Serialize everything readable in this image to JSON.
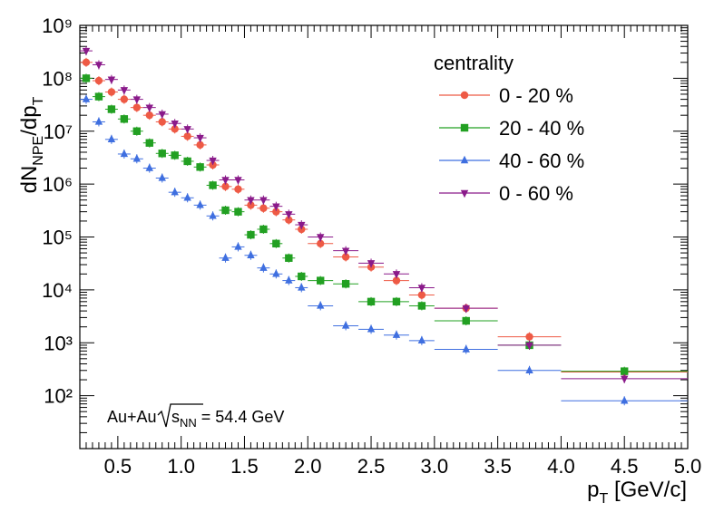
{
  "chart_data": {
    "type": "scatter",
    "x_axis": {
      "label": "p_T [GeV/c]",
      "range": [
        0.2,
        5.0
      ],
      "ticks": [
        "0.5",
        "1.0",
        "1.5",
        "2.0",
        "2.5",
        "3.0",
        "3.5",
        "4.0",
        "4.5",
        "5.0"
      ]
    },
    "y_axis": {
      "label": "dN_NPE/dp_T",
      "range": [
        10,
        1000000000
      ],
      "scale": "log",
      "ticks": [
        "10²",
        "10³",
        "10⁴",
        "10⁵",
        "10⁶",
        "10⁷",
        "10⁸",
        "10⁹"
      ]
    },
    "legend": {
      "title": "centrality",
      "position": "top-right"
    },
    "annotation": "Au+Au √s_NN = 54.4 GeV",
    "series": [
      {
        "name": "0  - 20 %",
        "color": "#ee5a45",
        "marker": "circle",
        "x": [
          0.25,
          0.35,
          0.45,
          0.55,
          0.65,
          0.75,
          0.85,
          0.95,
          1.05,
          1.15,
          1.25,
          1.35,
          1.45,
          1.55,
          1.65,
          1.75,
          1.85,
          1.95,
          2.1,
          2.3,
          2.5,
          2.7,
          2.9,
          3.25,
          3.75,
          4.5
        ],
        "xerr": [
          0.05,
          0.05,
          0.05,
          0.05,
          0.05,
          0.05,
          0.05,
          0.05,
          0.05,
          0.05,
          0.05,
          0.05,
          0.05,
          0.05,
          0.05,
          0.05,
          0.05,
          0.05,
          0.1,
          0.1,
          0.1,
          0.1,
          0.1,
          0.25,
          0.25,
          0.5
        ],
        "y": [
          200000000,
          90000000,
          55000000,
          40000000,
          28000000,
          20000000,
          15000000,
          11000000,
          8000000,
          5500000,
          2300000,
          900000,
          800000,
          400000,
          350000,
          300000,
          210000,
          140000,
          75000,
          42000,
          27000,
          15000,
          8000,
          4500,
          1300,
          280
        ]
      },
      {
        "name": "20  - 40 %",
        "color": "#22a022",
        "marker": "square",
        "x": [
          0.25,
          0.35,
          0.45,
          0.55,
          0.65,
          0.75,
          0.85,
          0.95,
          1.05,
          1.15,
          1.25,
          1.35,
          1.45,
          1.55,
          1.65,
          1.75,
          1.85,
          1.95,
          2.1,
          2.3,
          2.5,
          2.7,
          2.9,
          3.25,
          3.75,
          4.5
        ],
        "xerr": [
          0.05,
          0.05,
          0.05,
          0.05,
          0.05,
          0.05,
          0.05,
          0.05,
          0.05,
          0.05,
          0.05,
          0.05,
          0.05,
          0.05,
          0.05,
          0.05,
          0.05,
          0.05,
          0.1,
          0.1,
          0.1,
          0.1,
          0.1,
          0.25,
          0.25,
          0.5
        ],
        "y": [
          100000000,
          45000000,
          26000000,
          17000000,
          10000000,
          6000000,
          3800000,
          3500000,
          2700000,
          2100000,
          950000,
          320000,
          300000,
          110000,
          140000,
          75000,
          40000,
          18000,
          15000,
          13000,
          6000,
          6000,
          5000,
          2600,
          900,
          290
        ]
      },
      {
        "name": "40  - 60 %",
        "color": "#3f6fe0",
        "marker": "triangle-up",
        "x": [
          0.25,
          0.35,
          0.45,
          0.55,
          0.65,
          0.75,
          0.85,
          0.95,
          1.05,
          1.15,
          1.25,
          1.35,
          1.45,
          1.55,
          1.65,
          1.75,
          1.85,
          1.95,
          2.1,
          2.3,
          2.5,
          2.7,
          2.9,
          3.25,
          3.75,
          4.5
        ],
        "xerr": [
          0.05,
          0.05,
          0.05,
          0.05,
          0.05,
          0.05,
          0.05,
          0.05,
          0.05,
          0.05,
          0.05,
          0.05,
          0.05,
          0.05,
          0.05,
          0.05,
          0.05,
          0.05,
          0.1,
          0.1,
          0.1,
          0.1,
          0.1,
          0.25,
          0.25,
          0.5
        ],
        "y": [
          40000000,
          15000000,
          7000000,
          3700000,
          3000000,
          2000000,
          1300000,
          700000,
          550000,
          400000,
          250000,
          40000,
          65000,
          45000,
          26000,
          20000,
          15000,
          11000,
          5000,
          2100,
          1800,
          1400,
          1100,
          750,
          300,
          80
        ]
      },
      {
        "name": "0 - 60 %",
        "color": "#8a1a8a",
        "marker": "triangle-down",
        "x": [
          0.25,
          0.35,
          0.45,
          0.55,
          0.65,
          0.75,
          0.85,
          0.95,
          1.05,
          1.15,
          1.25,
          1.35,
          1.45,
          1.55,
          1.65,
          1.75,
          1.85,
          1.95,
          2.1,
          2.3,
          2.5,
          2.7,
          2.9,
          3.25,
          3.75,
          4.5
        ],
        "xerr": [
          0.05,
          0.05,
          0.05,
          0.05,
          0.05,
          0.05,
          0.05,
          0.05,
          0.05,
          0.05,
          0.05,
          0.05,
          0.05,
          0.05,
          0.05,
          0.05,
          0.05,
          0.05,
          0.1,
          0.1,
          0.1,
          0.1,
          0.1,
          0.25,
          0.25,
          0.5
        ],
        "y": [
          330000000,
          180000000,
          95000000,
          60000000,
          40000000,
          28000000,
          21000000,
          14000000,
          11000000,
          7500000,
          2800000,
          1200000,
          1200000,
          500000,
          500000,
          380000,
          270000,
          170000,
          100000,
          55000,
          32000,
          20000,
          11000,
          4500,
          900,
          210
        ]
      }
    ]
  }
}
